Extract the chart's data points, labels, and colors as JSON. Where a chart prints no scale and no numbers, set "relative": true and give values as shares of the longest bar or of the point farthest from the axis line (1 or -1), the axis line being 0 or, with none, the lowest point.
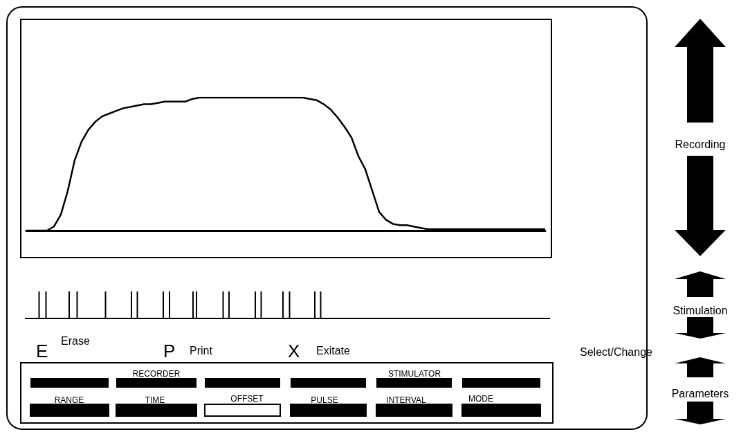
{
  "chart_data": {
    "type": "line",
    "relative": true,
    "marker": "none",
    "color": "#000000",
    "categories": [
      null,
      null,
      null,
      null,
      null,
      null,
      null,
      null,
      null,
      null,
      null,
      null,
      null,
      null,
      null,
      null,
      null,
      null,
      null,
      null,
      null,
      null,
      null,
      null,
      null,
      null,
      null,
      null,
      null,
      null,
      null,
      null,
      null,
      null,
      null,
      null,
      null,
      null,
      null,
      null,
      null,
      null,
      null,
      null,
      null,
      null,
      null,
      null,
      null,
      null,
      null,
      null,
      null,
      null,
      null,
      null,
      null,
      null,
      null,
      null,
      null,
      null,
      null,
      null,
      null,
      null,
      null,
      null,
      null,
      null,
      null,
      null,
      null,
      null,
      null,
      null
    ],
    "values": [
      0,
      0,
      0,
      0,
      0.03,
      0.12,
      0.3,
      0.53,
      0.67,
      0.76,
      0.82,
      0.86,
      0.88,
      0.9,
      0.92,
      0.93,
      0.94,
      0.95,
      0.95,
      0.96,
      0.97,
      0.97,
      0.97,
      0.97,
      0.99,
      1,
      1,
      1,
      1,
      1,
      1,
      1,
      1,
      1,
      1,
      1,
      1,
      1,
      1,
      1,
      1,
      0.99,
      0.98,
      0.95,
      0.91,
      0.85,
      0.78,
      0.7,
      0.56,
      0.46,
      0.3,
      0.14,
      0.08,
      0.05,
      0.04,
      0.04,
      0.03,
      0.02,
      0.01,
      0.01,
      0.01,
      0.01,
      0.01,
      0.01,
      0.01,
      0.01,
      0.01,
      0.01,
      0.01,
      0.01,
      0.01,
      0.01,
      0.01,
      0.01,
      0.01,
      0.01
    ],
    "annotations": [
      "E",
      "Erase",
      "P",
      "Print",
      "X",
      "Exitate",
      "Select/Change",
      "RECORDER",
      "STIMULATOR",
      "RANGE",
      "TIME",
      "OFFSET",
      "PULSE",
      "INTERVAL",
      "MODE",
      "Recording",
      "Stimulation",
      "Parameters"
    ]
  }
}
